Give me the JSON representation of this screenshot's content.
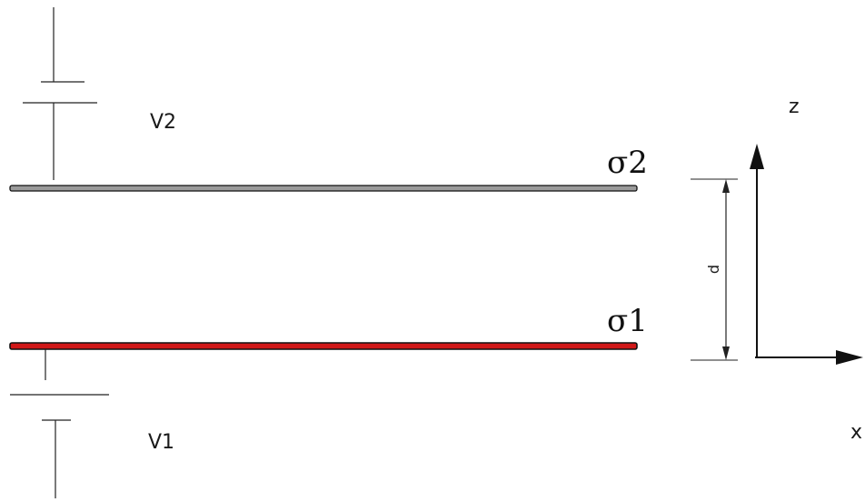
{
  "labels": {
    "battery_top": "V2",
    "battery_bottom": "V1",
    "plate_top": "σ2",
    "plate_bottom": "σ1",
    "separation": "d",
    "axis_z": "z",
    "axis_x": "x"
  },
  "colors": {
    "plate_top_fill": "#9a9a9a",
    "plate_bottom_fill": "#d01818",
    "plate_outline": "#111111",
    "line": "#222222"
  }
}
